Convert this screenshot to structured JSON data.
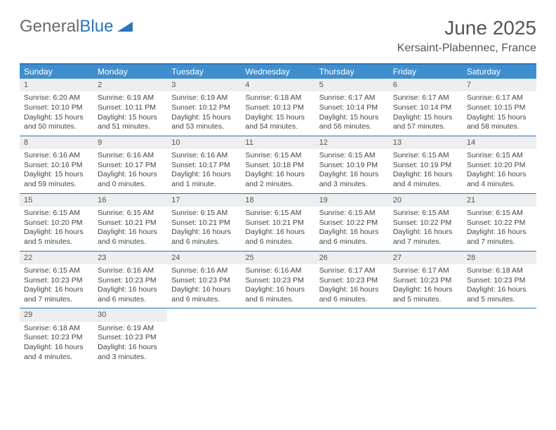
{
  "logo": {
    "part1": "General",
    "part2": "Blue"
  },
  "title": "June 2025",
  "subtitle": "Kersaint-Plabennec, France",
  "colors": {
    "header_bg": "#3f8fcf",
    "border": "#2b74b8",
    "daynum_bg": "#eceeef",
    "text": "#444444",
    "title_text": "#555555"
  },
  "daysOfWeek": [
    "Sunday",
    "Monday",
    "Tuesday",
    "Wednesday",
    "Thursday",
    "Friday",
    "Saturday"
  ],
  "weeks": [
    [
      {
        "n": "1",
        "sr": "6:20 AM",
        "ss": "10:10 PM",
        "dl": "15 hours and 50 minutes."
      },
      {
        "n": "2",
        "sr": "6:19 AM",
        "ss": "10:11 PM",
        "dl": "15 hours and 51 minutes."
      },
      {
        "n": "3",
        "sr": "6:19 AM",
        "ss": "10:12 PM",
        "dl": "15 hours and 53 minutes."
      },
      {
        "n": "4",
        "sr": "6:18 AM",
        "ss": "10:13 PM",
        "dl": "15 hours and 54 minutes."
      },
      {
        "n": "5",
        "sr": "6:17 AM",
        "ss": "10:14 PM",
        "dl": "15 hours and 56 minutes."
      },
      {
        "n": "6",
        "sr": "6:17 AM",
        "ss": "10:14 PM",
        "dl": "15 hours and 57 minutes."
      },
      {
        "n": "7",
        "sr": "6:17 AM",
        "ss": "10:15 PM",
        "dl": "15 hours and 58 minutes."
      }
    ],
    [
      {
        "n": "8",
        "sr": "6:16 AM",
        "ss": "10:16 PM",
        "dl": "15 hours and 59 minutes."
      },
      {
        "n": "9",
        "sr": "6:16 AM",
        "ss": "10:17 PM",
        "dl": "16 hours and 0 minutes."
      },
      {
        "n": "10",
        "sr": "6:16 AM",
        "ss": "10:17 PM",
        "dl": "16 hours and 1 minute."
      },
      {
        "n": "11",
        "sr": "6:15 AM",
        "ss": "10:18 PM",
        "dl": "16 hours and 2 minutes."
      },
      {
        "n": "12",
        "sr": "6:15 AM",
        "ss": "10:19 PM",
        "dl": "16 hours and 3 minutes."
      },
      {
        "n": "13",
        "sr": "6:15 AM",
        "ss": "10:19 PM",
        "dl": "16 hours and 4 minutes."
      },
      {
        "n": "14",
        "sr": "6:15 AM",
        "ss": "10:20 PM",
        "dl": "16 hours and 4 minutes."
      }
    ],
    [
      {
        "n": "15",
        "sr": "6:15 AM",
        "ss": "10:20 PM",
        "dl": "16 hours and 5 minutes."
      },
      {
        "n": "16",
        "sr": "6:15 AM",
        "ss": "10:21 PM",
        "dl": "16 hours and 6 minutes."
      },
      {
        "n": "17",
        "sr": "6:15 AM",
        "ss": "10:21 PM",
        "dl": "16 hours and 6 minutes."
      },
      {
        "n": "18",
        "sr": "6:15 AM",
        "ss": "10:21 PM",
        "dl": "16 hours and 6 minutes."
      },
      {
        "n": "19",
        "sr": "6:15 AM",
        "ss": "10:22 PM",
        "dl": "16 hours and 6 minutes."
      },
      {
        "n": "20",
        "sr": "6:15 AM",
        "ss": "10:22 PM",
        "dl": "16 hours and 7 minutes."
      },
      {
        "n": "21",
        "sr": "6:15 AM",
        "ss": "10:22 PM",
        "dl": "16 hours and 7 minutes."
      }
    ],
    [
      {
        "n": "22",
        "sr": "6:15 AM",
        "ss": "10:23 PM",
        "dl": "16 hours and 7 minutes."
      },
      {
        "n": "23",
        "sr": "6:16 AM",
        "ss": "10:23 PM",
        "dl": "16 hours and 6 minutes."
      },
      {
        "n": "24",
        "sr": "6:16 AM",
        "ss": "10:23 PM",
        "dl": "16 hours and 6 minutes."
      },
      {
        "n": "25",
        "sr": "6:16 AM",
        "ss": "10:23 PM",
        "dl": "16 hours and 6 minutes."
      },
      {
        "n": "26",
        "sr": "6:17 AM",
        "ss": "10:23 PM",
        "dl": "16 hours and 6 minutes."
      },
      {
        "n": "27",
        "sr": "6:17 AM",
        "ss": "10:23 PM",
        "dl": "16 hours and 5 minutes."
      },
      {
        "n": "28",
        "sr": "6:18 AM",
        "ss": "10:23 PM",
        "dl": "16 hours and 5 minutes."
      }
    ],
    [
      {
        "n": "29",
        "sr": "6:18 AM",
        "ss": "10:23 PM",
        "dl": "16 hours and 4 minutes."
      },
      {
        "n": "30",
        "sr": "6:19 AM",
        "ss": "10:23 PM",
        "dl": "16 hours and 3 minutes."
      },
      null,
      null,
      null,
      null,
      null
    ]
  ],
  "labels": {
    "sunrise": "Sunrise:",
    "sunset": "Sunset:",
    "daylight": "Daylight:"
  }
}
